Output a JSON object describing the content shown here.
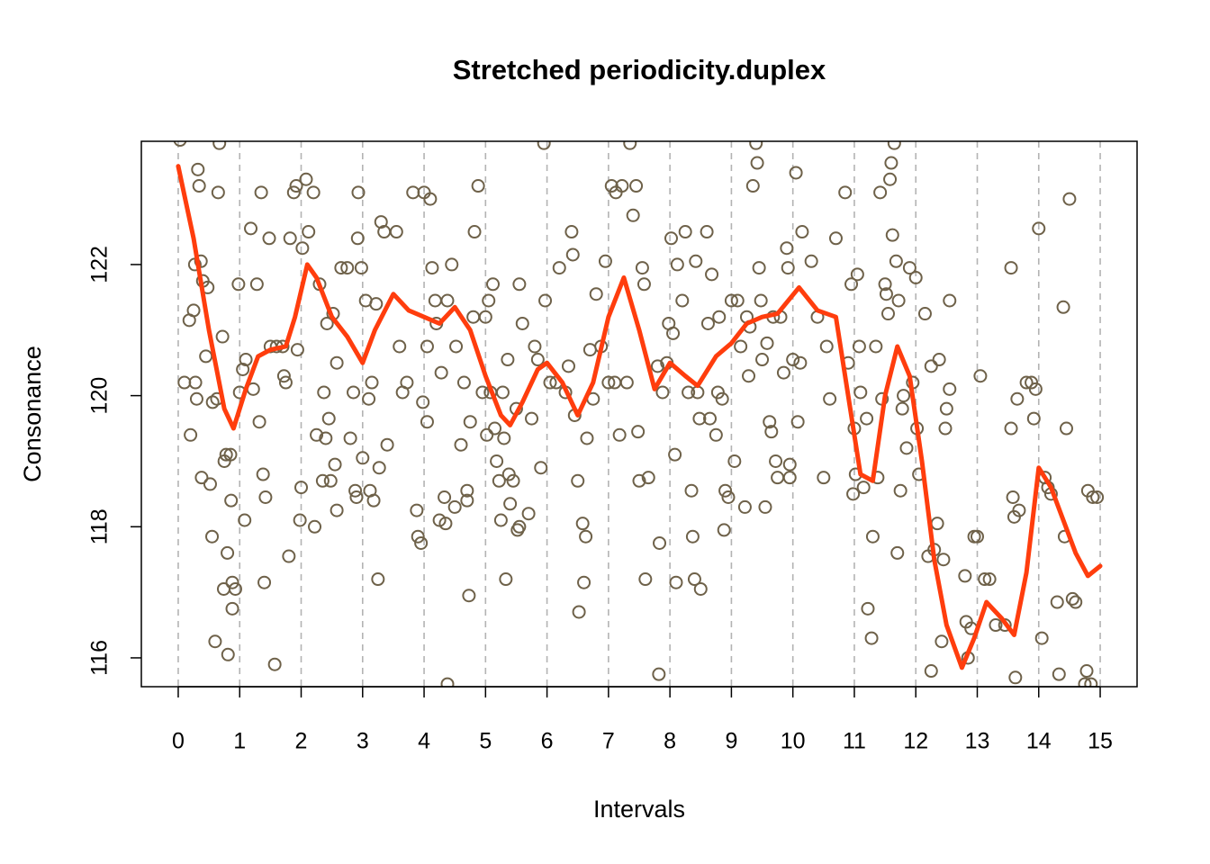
{
  "chart_data": {
    "type": "scatter",
    "title": "Stretched periodicity.duplex",
    "x_label": "Intervals",
    "y_label": "Consonance",
    "xlim": [
      -0.6,
      15.6
    ],
    "ylim": [
      115.56,
      123.88
    ],
    "xticks": [
      0,
      1,
      2,
      3,
      4,
      5,
      6,
      7,
      8,
      9,
      10,
      11,
      12,
      13,
      14,
      15
    ],
    "yticks": [
      116,
      118,
      120,
      122
    ],
    "grid": "vertical-dashed",
    "series": [
      {
        "type": "scatter",
        "color": "#6e6149",
        "x": [
          0.03,
          0.1,
          0.18,
          0.2,
          0.25,
          0.27,
          0.28,
          0.3,
          0.32,
          0.34,
          0.37,
          0.38,
          0.4,
          0.45,
          0.48,
          0.52,
          0.55,
          0.56,
          0.6,
          0.63,
          0.65,
          0.67,
          0.72,
          0.74,
          0.75,
          0.78,
          0.8,
          0.81,
          0.85,
          0.86,
          0.88,
          0.88,
          0.93,
          0.98,
          1.0,
          1.05,
          1.08,
          1.1,
          1.18,
          1.22,
          1.28,
          1.32,
          1.35,
          1.38,
          1.4,
          1.42,
          1.48,
          1.5,
          1.6,
          1.7,
          1.57,
          1.72,
          1.75,
          1.8,
          1.82,
          1.88,
          1.92,
          1.94,
          1.98,
          2.0,
          2.02,
          2.08,
          2.12,
          2.2,
          2.22,
          2.25,
          2.3,
          2.35,
          2.37,
          2.4,
          2.42,
          2.45,
          2.48,
          2.52,
          2.55,
          2.58,
          2.58,
          2.65,
          2.75,
          2.8,
          2.85,
          2.88,
          2.9,
          2.92,
          2.93,
          2.98,
          3.0,
          3.05,
          3.1,
          3.12,
          3.15,
          3.18,
          3.22,
          3.25,
          3.27,
          3.3,
          3.35,
          3.4,
          3.55,
          3.6,
          3.65,
          3.72,
          3.82,
          3.88,
          3.9,
          3.95,
          3.98,
          4.0,
          4.05,
          4.05,
          4.1,
          4.13,
          4.18,
          4.2,
          4.25,
          4.28,
          4.33,
          4.35,
          4.38,
          4.38,
          4.45,
          4.5,
          4.52,
          4.6,
          4.65,
          4.7,
          4.7,
          4.73,
          4.75,
          4.8,
          4.82,
          4.88,
          4.95,
          5.0,
          5.02,
          5.05,
          5.08,
          5.12,
          5.15,
          5.18,
          5.22,
          5.25,
          5.28,
          5.3,
          5.33,
          5.36,
          5.38,
          5.4,
          5.45,
          5.5,
          5.52,
          5.55,
          5.55,
          5.6,
          5.7,
          5.75,
          5.8,
          5.85,
          5.9,
          5.95,
          5.97,
          6.05,
          6.15,
          6.2,
          6.3,
          6.35,
          6.4,
          6.42,
          6.45,
          6.5,
          6.52,
          6.58,
          6.6,
          6.63,
          6.65,
          6.7,
          6.75,
          6.8,
          6.88,
          6.95,
          7.0,
          7.05,
          7.1,
          7.12,
          7.18,
          7.22,
          7.3,
          7.35,
          7.4,
          7.45,
          7.48,
          7.5,
          7.55,
          7.58,
          7.6,
          7.65,
          7.8,
          7.83,
          7.82,
          7.88,
          7.95,
          7.98,
          8.02,
          8.05,
          8.08,
          8.1,
          8.12,
          8.2,
          8.25,
          8.3,
          8.35,
          8.37,
          8.4,
          8.42,
          8.45,
          8.48,
          8.5,
          8.6,
          8.62,
          8.65,
          8.68,
          8.75,
          8.78,
          8.8,
          8.85,
          8.88,
          8.9,
          8.95,
          9.0,
          9.05,
          9.1,
          9.15,
          9.22,
          9.25,
          9.28,
          9.3,
          9.35,
          9.4,
          9.42,
          9.45,
          9.48,
          9.5,
          9.55,
          9.58,
          9.62,
          9.65,
          9.68,
          9.72,
          9.75,
          9.8,
          9.85,
          9.9,
          9.92,
          9.95,
          9.95,
          10.0,
          10.05,
          10.08,
          10.12,
          10.15,
          10.3,
          10.4,
          10.5,
          10.55,
          10.6,
          10.7,
          10.85,
          10.9,
          10.95,
          10.98,
          11.0,
          11.02,
          11.05,
          11.08,
          11.1,
          11.15,
          11.2,
          11.22,
          11.28,
          11.3,
          11.35,
          11.38,
          11.42,
          11.45,
          11.5,
          11.52,
          11.55,
          11.58,
          11.6,
          11.62,
          11.65,
          11.68,
          11.7,
          11.72,
          11.75,
          11.78,
          11.8,
          11.85,
          11.9,
          11.95,
          12.0,
          12.02,
          12.05,
          12.15,
          12.2,
          12.25,
          12.25,
          12.3,
          12.35,
          12.38,
          12.42,
          12.45,
          12.48,
          12.5,
          12.55,
          12.55,
          12.8,
          12.82,
          12.85,
          12.9,
          12.95,
          13.0,
          13.05,
          13.12,
          13.2,
          13.3,
          13.45,
          13.55,
          13.55,
          13.58,
          13.6,
          13.62,
          13.65,
          13.68,
          13.8,
          13.88,
          13.92,
          13.95,
          14.0,
          14.05,
          14.1,
          14.15,
          14.2,
          14.3,
          14.33,
          14.4,
          14.42,
          14.45,
          14.5,
          14.55,
          14.6,
          14.75,
          14.78,
          14.8,
          14.85,
          14.88,
          14.95
        ],
        "values": [
          123.9,
          120.2,
          121.15,
          119.4,
          121.3,
          122,
          120.2,
          119.95,
          123.45,
          123.2,
          122.05,
          118.75,
          121.75,
          120.6,
          121.65,
          118.65,
          117.85,
          119.9,
          116.25,
          119.95,
          123.1,
          123.85,
          120.9,
          117.05,
          119,
          119.1,
          117.6,
          116.05,
          119.1,
          118.4,
          117.15,
          116.75,
          117.05,
          121.7,
          120.05,
          120.4,
          118.1,
          120.55,
          122.55,
          120.1,
          121.7,
          119.6,
          123.1,
          118.8,
          117.15,
          118.45,
          122.4,
          120.75,
          120.75,
          120.75,
          115.9,
          120.3,
          120.2,
          117.55,
          122.4,
          123.1,
          123.2,
          120.7,
          118.1,
          118.6,
          122.25,
          123.3,
          122.5,
          123.1,
          118.0,
          119.4,
          121.7,
          118.7,
          120.05,
          119.35,
          121.1,
          119.65,
          118.7,
          121.25,
          118.95,
          118.25,
          120.5,
          121.95,
          121.95,
          119.35,
          120.05,
          118.55,
          118.45,
          122.4,
          123.1,
          121.95,
          119.05,
          121.45,
          119.95,
          118.55,
          120.2,
          118.4,
          121.4,
          117.2,
          118.9,
          122.65,
          122.5,
          119.25,
          122.5,
          120.75,
          120.05,
          120.2,
          123.1,
          118.25,
          117.85,
          117.75,
          119.9,
          123.1,
          119.6,
          120.75,
          123.0,
          121.95,
          121.45,
          121.1,
          118.1,
          120.35,
          118.45,
          118.05,
          121.45,
          115.6,
          122.0,
          118.3,
          120.75,
          119.25,
          120.2,
          118.55,
          118.4,
          116.95,
          119.6,
          121.2,
          122.5,
          123.2,
          120.05,
          121.2,
          119.4,
          121.45,
          120.05,
          121.7,
          119.5,
          119.0,
          118.7,
          118.1,
          120.05,
          119.35,
          117.2,
          120.55,
          118.8,
          118.35,
          118.7,
          119.8,
          117.95,
          118.0,
          121.7,
          121.1,
          118.2,
          119.65,
          120.75,
          120.55,
          118.9,
          123.85,
          121.45,
          120.2,
          120.2,
          121.95,
          120.05,
          120.45,
          122.5,
          122.15,
          119.7,
          118.7,
          116.7,
          118.05,
          117.15,
          117.85,
          119.35,
          120.7,
          119.95,
          121.55,
          120.75,
          122.05,
          120.2,
          123.2,
          120.2,
          123.1,
          119.4,
          123.2,
          120.2,
          123.85,
          122.75,
          123.2,
          119.45,
          118.7,
          121.95,
          121.7,
          117.2,
          118.75,
          120.45,
          117.75,
          115.75,
          120.05,
          120.5,
          121.1,
          122.4,
          120.95,
          119.1,
          117.15,
          122.0,
          121.45,
          122.5,
          120.05,
          118.55,
          117.85,
          117.2,
          122.05,
          120.05,
          119.65,
          117.05,
          122.5,
          121.1,
          119.65,
          121.85,
          119.4,
          120.05,
          121.2,
          119.95,
          117.95,
          118.55,
          118.45,
          121.45,
          119.0,
          121.45,
          120.75,
          118.3,
          121.2,
          120.3,
          121.05,
          123.2,
          123.85,
          123.55,
          121.95,
          121.45,
          120.55,
          118.3,
          120.8,
          119.6,
          119.45,
          121.2,
          119.0,
          118.75,
          121.2,
          120.35,
          122.25,
          121.95,
          118.95,
          118.75,
          120.55,
          123.4,
          119.6,
          120.5,
          122.5,
          122.05,
          121.2,
          118.75,
          120.75,
          119.95,
          122.4,
          123.1,
          120.5,
          121.7,
          118.5,
          119.5,
          118.8,
          121.85,
          120.75,
          120.05,
          118.6,
          119.65,
          116.75,
          116.3,
          117.85,
          120.75,
          118.75,
          123.1,
          119.95,
          121.7,
          121.55,
          121.25,
          123.3,
          123.55,
          122.45,
          123.85,
          122.05,
          117.6,
          121.45,
          118.55,
          119.8,
          120.0,
          119.2,
          121.95,
          120.2,
          121.8,
          119.5,
          118.8,
          121.25,
          117.55,
          120.45,
          115.8,
          117.65,
          118.05,
          120.55,
          116.25,
          117.5,
          119.5,
          119.8,
          120.1,
          121.45,
          117.25,
          116.55,
          116.0,
          116.45,
          117.85,
          117.85,
          120.3,
          117.2,
          117.2,
          116.5,
          116.5,
          121.95,
          119.5,
          118.45,
          118.15,
          115.7,
          119.95,
          118.25,
          120.2,
          120.2,
          119.65,
          120.1,
          122.55,
          116.3,
          118.75,
          118.6,
          118.5,
          116.85,
          115.75,
          121.35,
          117.85,
          119.5,
          123.0,
          116.9,
          116.85,
          115.6,
          115.8,
          118.55,
          115.6,
          118.45,
          118.45
        ]
      },
      {
        "type": "line",
        "color": "#ff3d0d",
        "x": [
          0,
          0.25,
          0.5,
          0.75,
          0.9,
          1.1,
          1.3,
          1.5,
          1.75,
          1.9,
          2.1,
          2.25,
          2.5,
          2.75,
          3.0,
          3.2,
          3.5,
          3.75,
          4.0,
          4.25,
          4.5,
          4.75,
          5.0,
          5.25,
          5.4,
          5.6,
          5.85,
          6.0,
          6.25,
          6.5,
          6.75,
          7.0,
          7.25,
          7.5,
          7.75,
          8.0,
          8.25,
          8.45,
          8.75,
          9.0,
          9.25,
          9.5,
          9.75,
          10.1,
          10.4,
          10.7,
          10.9,
          11.1,
          11.3,
          11.5,
          11.7,
          11.9,
          12.1,
          12.3,
          12.5,
          12.75,
          12.95,
          13.15,
          13.4,
          13.6,
          13.8,
          14.0,
          14.2,
          14.4,
          14.6,
          14.8,
          15.0
        ],
        "values": [
          123.5,
          122.4,
          121.0,
          119.8,
          119.5,
          120.1,
          120.6,
          120.7,
          120.75,
          121.2,
          122.0,
          121.8,
          121.2,
          120.9,
          120.5,
          121.0,
          121.55,
          121.3,
          121.2,
          121.1,
          121.35,
          121.0,
          120.3,
          119.7,
          119.55,
          119.9,
          120.4,
          120.5,
          120.2,
          119.7,
          120.2,
          121.2,
          121.8,
          121.0,
          120.1,
          120.5,
          120.3,
          120.15,
          120.6,
          120.8,
          121.1,
          121.2,
          121.25,
          121.65,
          121.3,
          121.2,
          120.0,
          118.8,
          118.7,
          120.0,
          120.75,
          120.3,
          119.0,
          117.5,
          116.5,
          115.85,
          116.3,
          116.85,
          116.6,
          116.35,
          117.3,
          118.9,
          118.6,
          118.1,
          117.6,
          117.25,
          117.4
        ]
      }
    ]
  }
}
